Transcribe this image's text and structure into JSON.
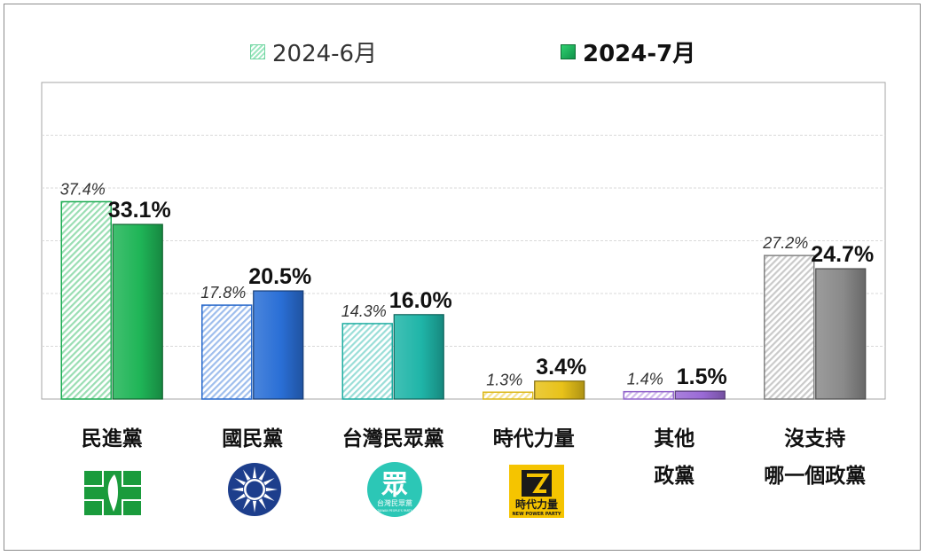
{
  "chart_data": {
    "type": "bar",
    "categories": [
      "民進黨",
      "國民黨",
      "台灣民眾黨",
      "時代力量",
      "其他\n政黨",
      "沒支持\n哪一個政黨"
    ],
    "series": [
      {
        "name": "2024-6月",
        "values": [
          37.4,
          17.8,
          14.3,
          1.3,
          1.4,
          27.2
        ],
        "data_labels": [
          "37.4%",
          "17.8%",
          "14.3%",
          "1.3%",
          "1.4%",
          "27.2%"
        ]
      },
      {
        "name": "2024-7月",
        "values": [
          33.1,
          20.5,
          16.0,
          3.4,
          1.5,
          24.7
        ],
        "data_labels": [
          "33.1%",
          "20.5%",
          "16.0%",
          "3.4%",
          "1.5%",
          "24.7%"
        ]
      }
    ],
    "ylim": [
      0,
      60
    ],
    "grid": true,
    "legend": "top-center",
    "colors": [
      "#1fb557",
      "#2a6fd6",
      "#1fb5a8",
      "#e8c21a",
      "#9a6ad6",
      "#8a8a8a"
    ]
  },
  "logos": {
    "npp_text": "時代力量",
    "npp_sub": "NEW POWER PARTY",
    "tpp_char": "眾",
    "tpp_text": "台灣民眾黨",
    "tpp_sub": "TAIWAN PEOPLE'S PARTY"
  }
}
